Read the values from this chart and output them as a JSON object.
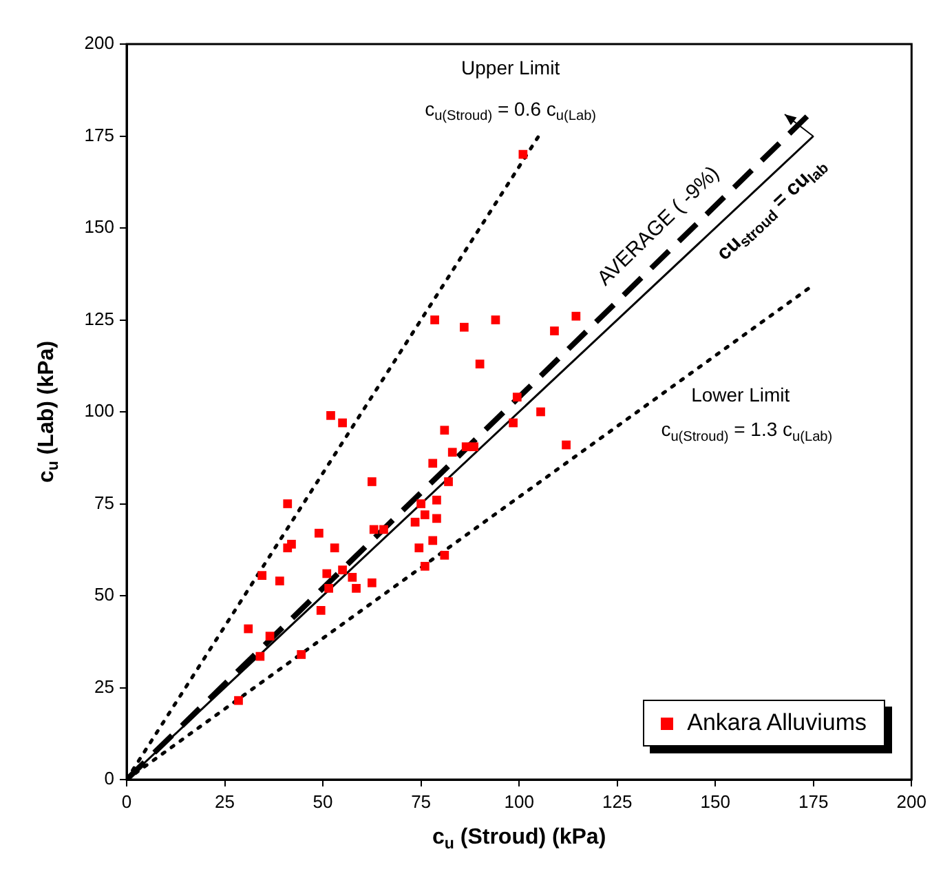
{
  "chart_data": {
    "type": "scatter",
    "xlabel": "c$_{u}$ (Stroud) (kPa)",
    "ylabel": "c$_{u}$ (Lab) (kPa)",
    "xlim": [
      0,
      200
    ],
    "xticks": [
      0,
      25,
      50,
      75,
      100,
      125,
      150,
      175,
      200
    ],
    "ylim": [
      0,
      200
    ],
    "yticks": [
      0,
      25,
      50,
      75,
      100,
      125,
      150,
      175,
      200
    ],
    "grid": false,
    "legend": "bottom right",
    "marker": "square",
    "series": [
      {
        "name": "Ankara Alluviums",
        "color": "#ff0000",
        "x": [
          101,
          78.5,
          86,
          94,
          90,
          109,
          114.5,
          99.5,
          105.5,
          98.5,
          112,
          86.5,
          83,
          52,
          55,
          81,
          41,
          62.5,
          49,
          41,
          42,
          53,
          34.5,
          39,
          51,
          55,
          51.5,
          57.5,
          58.5,
          62.5,
          49.5,
          63,
          65.5,
          31,
          36.5,
          44.5,
          34,
          28.5,
          88.5,
          82,
          78,
          75,
          79,
          73.5,
          76,
          79,
          74.5,
          78,
          76,
          81
        ],
        "values": [
          170,
          125,
          123,
          125,
          113,
          122,
          126,
          104,
          100,
          97,
          91,
          90.5,
          89,
          99,
          97,
          95,
          75,
          81,
          67,
          63,
          64,
          63,
          55.5,
          54,
          56,
          57,
          52,
          55,
          52,
          53.5,
          46,
          68,
          68,
          41,
          39,
          34,
          33.5,
          21.5,
          90.5,
          81,
          86,
          75,
          76,
          70,
          72,
          71,
          63,
          65,
          58,
          61
        ]
      },
      {
        "type": "line",
        "marker": "none",
        "color": "#000000",
        "line_style": "solid",
        "x": [
          0,
          175
        ],
        "values": [
          0,
          175
        ]
      },
      {
        "type": "line",
        "marker": "none",
        "color": "#000000",
        "line_style": "dashed",
        "x": [
          0,
          174
        ],
        "values": [
          0,
          181
        ]
      },
      {
        "type": "line",
        "marker": "none",
        "color": "#000000",
        "line_style": "dotted",
        "x": [
          0,
          105
        ],
        "values": [
          0,
          175
        ]
      },
      {
        "type": "line",
        "marker": "none",
        "color": "#000000",
        "line_style": "dotted",
        "x": [
          0,
          175
        ],
        "values": [
          0,
          134.5
        ]
      }
    ],
    "annotations": [
      "Upper Limit",
      "c$_{u(Stroud)}$ = 0.6 c$_{u(Lab)}$",
      {
        "text": "AVERAGE ( -9%)",
        "x": 140,
        "y": 145.6
      },
      {
        "text": "cu$_{stroud}$ = cu$_{lab}$",
        "x": 160,
        "y": 160
      },
      "Lower Limit",
      "c$_{u(Stroud)}$ = 1.3 c$_{u(Lab)}$"
    ]
  }
}
